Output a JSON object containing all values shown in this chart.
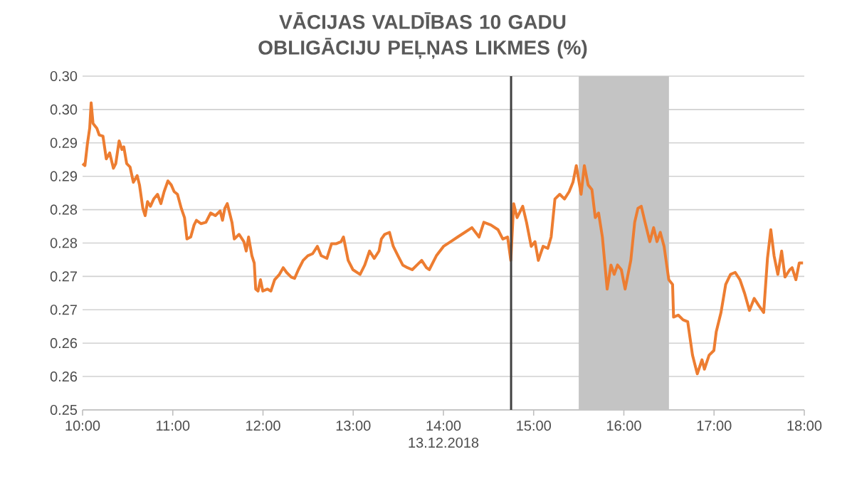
{
  "chart_data": {
    "type": "line",
    "title": "VĀCIJAS VALDĪBAS 10 GADU OBLIGĀCIJU PEĻŅAS LIKMES (%)",
    "xlabel": "13.12.2018",
    "x": [
      10.0,
      10.026,
      10.053,
      10.079,
      10.095,
      10.116,
      10.158,
      10.184,
      10.226,
      10.263,
      10.3,
      10.342,
      10.368,
      10.405,
      10.436,
      10.457,
      10.489,
      10.526,
      10.563,
      10.605,
      10.631,
      10.668,
      10.694,
      10.72,
      10.752,
      10.789,
      10.831,
      10.868,
      10.904,
      10.946,
      10.983,
      11.015,
      11.052,
      11.094,
      11.13,
      11.157,
      11.199,
      11.236,
      11.262,
      11.314,
      11.367,
      11.42,
      11.472,
      11.525,
      11.551,
      11.577,
      11.604,
      11.63,
      11.656,
      11.682,
      11.735,
      11.788,
      11.814,
      11.84,
      11.877,
      11.903,
      11.919,
      11.945,
      11.972,
      11.998,
      12.05,
      12.087,
      12.129,
      12.182,
      12.224,
      12.261,
      12.313,
      12.35,
      12.392,
      12.445,
      12.497,
      12.55,
      12.603,
      12.645,
      12.708,
      12.76,
      12.813,
      12.865,
      12.892,
      12.944,
      12.997,
      13.076,
      13.128,
      13.181,
      13.233,
      13.286,
      13.312,
      13.349,
      13.402,
      13.444,
      13.496,
      13.549,
      13.602,
      13.654,
      13.707,
      13.759,
      13.812,
      13.843,
      13.922,
      14.001,
      14.08,
      14.158,
      14.237,
      14.316,
      14.395,
      14.448,
      14.526,
      14.605,
      14.658,
      14.711,
      14.747,
      14.779,
      14.816,
      14.879,
      14.921,
      14.973,
      15.015,
      15.052,
      15.105,
      15.157,
      15.194,
      15.236,
      15.289,
      15.342,
      15.394,
      15.436,
      15.473,
      15.526,
      15.562,
      15.604,
      15.646,
      15.683,
      15.72,
      15.762,
      15.815,
      15.857,
      15.893,
      15.93,
      15.972,
      16.014,
      16.077,
      16.12,
      16.156,
      16.193,
      16.235,
      16.288,
      16.33,
      16.367,
      16.404,
      16.446,
      16.498,
      16.54,
      16.551,
      16.603,
      16.656,
      16.708,
      16.761,
      16.814,
      16.866,
      16.893,
      16.945,
      16.998,
      17.024,
      17.077,
      17.129,
      17.182,
      17.234,
      17.287,
      17.34,
      17.392,
      17.445,
      17.497,
      17.55,
      17.592,
      17.629,
      17.665,
      17.707,
      17.749,
      17.786,
      17.839,
      17.865,
      17.907,
      17.944,
      17.986
    ],
    "series": [
      {
        "color": "#ed7d31",
        "values": [
          0.2869,
          0.2866,
          0.2898,
          0.2922,
          0.296,
          0.2929,
          0.2922,
          0.2912,
          0.291,
          0.2876,
          0.2885,
          0.2862,
          0.2869,
          0.2903,
          0.289,
          0.2894,
          0.2869,
          0.2864,
          0.2841,
          0.2851,
          0.2837,
          0.2802,
          0.2791,
          0.2812,
          0.2805,
          0.2816,
          0.2823,
          0.2809,
          0.2827,
          0.2843,
          0.2837,
          0.2827,
          0.2823,
          0.2802,
          0.2788,
          0.2756,
          0.2759,
          0.2777,
          0.2784,
          0.2779,
          0.2781,
          0.2795,
          0.2791,
          0.2798,
          0.2784,
          0.2802,
          0.2809,
          0.2795,
          0.2781,
          0.2756,
          0.2763,
          0.2752,
          0.2738,
          0.2759,
          0.2731,
          0.272,
          0.2681,
          0.2678,
          0.2695,
          0.2678,
          0.2681,
          0.2678,
          0.2695,
          0.2703,
          0.2713,
          0.2706,
          0.2699,
          0.2697,
          0.271,
          0.2724,
          0.2731,
          0.2734,
          0.2745,
          0.2731,
          0.2727,
          0.2749,
          0.2749,
          0.2752,
          0.2759,
          0.2724,
          0.271,
          0.2703,
          0.2717,
          0.2738,
          0.2727,
          0.2738,
          0.2756,
          0.2763,
          0.2766,
          0.2745,
          0.2731,
          0.2717,
          0.2713,
          0.271,
          0.2717,
          0.2724,
          0.2713,
          0.271,
          0.2731,
          0.2745,
          0.2752,
          0.2759,
          0.2766,
          0.2773,
          0.2759,
          0.2781,
          0.2777,
          0.277,
          0.2756,
          0.2759,
          0.2724,
          0.2809,
          0.2788,
          0.2805,
          0.2781,
          0.2745,
          0.2752,
          0.2724,
          0.2745,
          0.2742,
          0.2759,
          0.2816,
          0.2823,
          0.2816,
          0.2827,
          0.2841,
          0.2866,
          0.2823,
          0.2866,
          0.2837,
          0.283,
          0.2788,
          0.2795,
          0.2759,
          0.2681,
          0.2717,
          0.2703,
          0.2717,
          0.271,
          0.2681,
          0.2724,
          0.2781,
          0.2802,
          0.2805,
          0.2781,
          0.2752,
          0.2773,
          0.2752,
          0.2766,
          0.2745,
          0.2695,
          0.2688,
          0.2639,
          0.2642,
          0.2635,
          0.2632,
          0.2582,
          0.2554,
          0.2575,
          0.2561,
          0.2582,
          0.2589,
          0.2617,
          0.2646,
          0.2688,
          0.2703,
          0.2706,
          0.2695,
          0.2674,
          0.2649,
          0.2667,
          0.2656,
          0.2646,
          0.2727,
          0.277,
          0.2731,
          0.2703,
          0.2738,
          0.2699,
          0.271,
          0.2713,
          0.2695,
          0.272,
          0.272
        ]
      }
    ],
    "xlim": [
      10,
      18
    ],
    "xticks": [
      {
        "value": 10,
        "label": "10:00"
      },
      {
        "value": 11,
        "label": "11:00"
      },
      {
        "value": 12,
        "label": "12:00"
      },
      {
        "value": 13,
        "label": "13:00"
      },
      {
        "value": 14,
        "label": "14:00"
      },
      {
        "value": 15,
        "label": "15:00"
      },
      {
        "value": 16,
        "label": "16:00"
      },
      {
        "value": 17,
        "label": "17:00"
      },
      {
        "value": 18,
        "label": "18:00"
      }
    ],
    "ylim": [
      0.25,
      0.3
    ],
    "yticks": [
      0.25,
      {
        "value": 0.255,
        "label": "0.26"
      },
      0.26,
      {
        "value": 0.265,
        "label": "0.27"
      },
      0.27,
      {
        "value": 0.275,
        "label": "0.28"
      },
      0.28,
      {
        "value": 0.285,
        "label": "0.29"
      },
      0.29,
      {
        "value": 0.295,
        "label": "0.30"
      },
      {
        "value": 0.3,
        "label": "0.30"
      }
    ],
    "grid": "y",
    "ref_lines": [
      {
        "axis": "x",
        "value": 14.75,
        "color": "#404040"
      }
    ],
    "bands": [
      {
        "axis": "x",
        "from": 15.5,
        "to": 16.5,
        "color": "#c4c4c4"
      }
    ]
  }
}
